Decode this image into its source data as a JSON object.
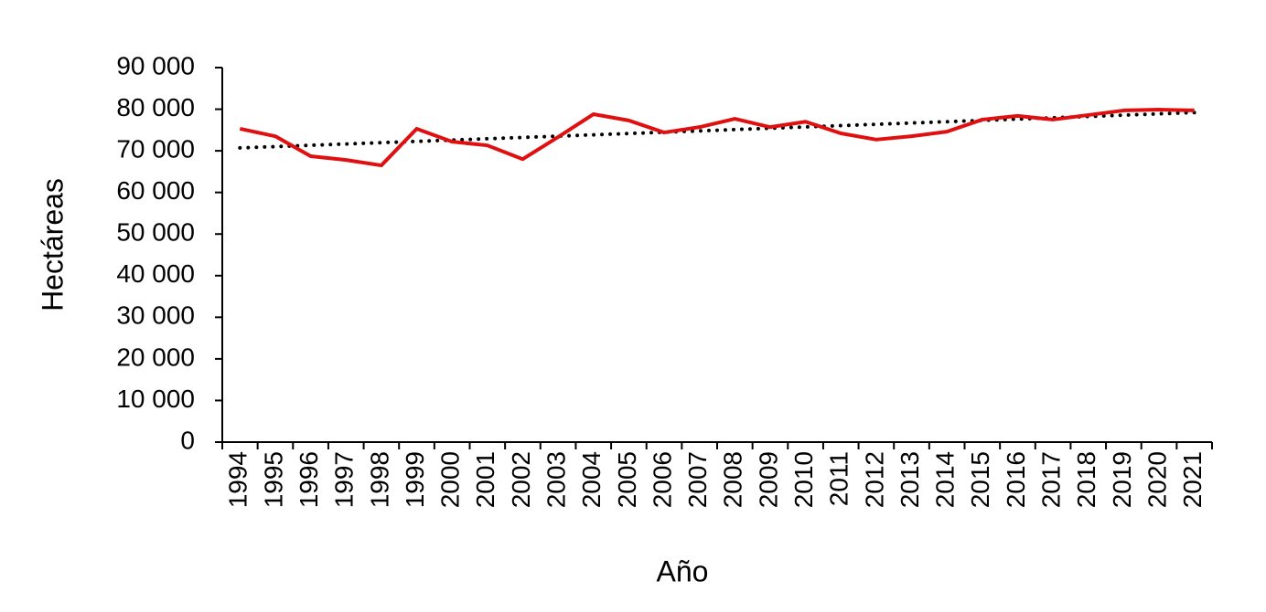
{
  "chart_data": {
    "type": "line",
    "xlabel": "Año",
    "ylabel": "Hectáreas",
    "categories": [
      "1994",
      "1995",
      "1996",
      "1997",
      "1998",
      "1999",
      "2000",
      "2001",
      "2002",
      "2003",
      "2004",
      "2005",
      "2006",
      "2007",
      "2008",
      "2009",
      "2010",
      "2011",
      "2012",
      "2013",
      "2014",
      "2015",
      "2016",
      "2017",
      "2018",
      "2019",
      "2020",
      "2021"
    ],
    "series": [
      {
        "color": "#e01010",
        "values": [
          75300,
          73500,
          68700,
          67800,
          66500,
          75300,
          72200,
          71300,
          68000,
          73300,
          78800,
          77300,
          74400,
          75700,
          77700,
          75700,
          77000,
          74200,
          72700,
          73500,
          74600,
          77500,
          78400,
          77500,
          78600,
          79700,
          79900,
          79700
        ]
      }
    ],
    "trendline": {
      "color": "#000000",
      "values": [
        70700,
        79200
      ]
    },
    "ylim": [
      0,
      90000
    ],
    "yticks": [
      0,
      {
        "value": 10000,
        "label": "10 000"
      },
      {
        "value": 20000,
        "label": "20 000"
      },
      {
        "value": 30000,
        "label": "30 000"
      },
      {
        "value": 40000,
        "label": "40 000"
      },
      {
        "value": 50000,
        "label": "50 000"
      },
      {
        "value": 60000,
        "label": "60 000"
      },
      {
        "value": 70000,
        "label": "70 000"
      },
      {
        "value": 80000,
        "label": "80 000"
      },
      {
        "value": 90000,
        "label": "90 000"
      }
    ]
  }
}
